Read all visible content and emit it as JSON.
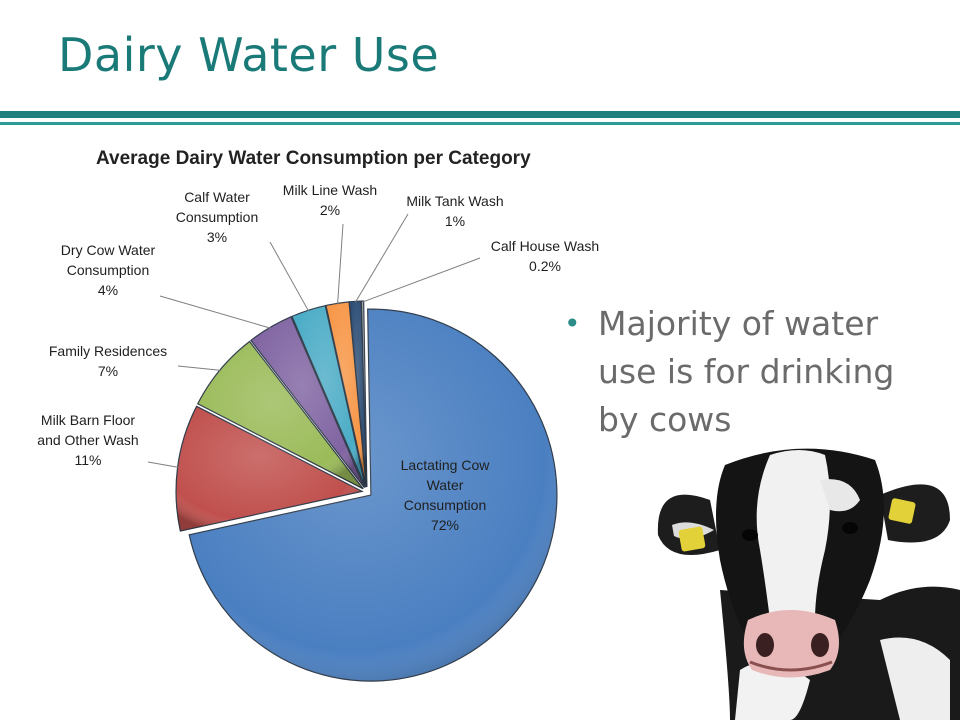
{
  "slide": {
    "title": "Dairy Water Use",
    "bullets": [
      "Majority of water use is for drinking by cows"
    ]
  },
  "chart_data": {
    "type": "pie",
    "title": "Average Dairy Water Consumption per Category",
    "slices": [
      {
        "label": "Lactating Cow Water Consumption",
        "display": "72%",
        "value": 72,
        "color": "#4a7fc1"
      },
      {
        "label": "Milk Barn Floor and Other Wash",
        "display": "11%",
        "value": 11,
        "color": "#c0504d"
      },
      {
        "label": "Family Residences",
        "display": "7%",
        "value": 7,
        "color": "#9bbb59"
      },
      {
        "label": "Dry Cow Water Consumption",
        "display": "4%",
        "value": 4,
        "color": "#8064a2"
      },
      {
        "label": "Calf Water Consumption",
        "display": "3%",
        "value": 3,
        "color": "#4bacc6"
      },
      {
        "label": "Milk Line Wash",
        "display": "2%",
        "value": 2,
        "color": "#f79646"
      },
      {
        "label": "Milk Tank Wash",
        "display": "1%",
        "value": 1,
        "color": "#2c4d75"
      },
      {
        "label": "Calf House Wash",
        "display": "0.2%",
        "value": 0.2,
        "color": "#a5a5a5"
      }
    ],
    "label_lines": [
      [
        "Lactating Cow",
        "Water",
        "Consumption",
        "72%"
      ],
      [
        "Milk Barn Floor",
        "and Other Wash",
        "11%"
      ],
      [
        "Family Residences",
        "7%"
      ],
      [
        "Dry Cow Water",
        "Consumption",
        "4%"
      ],
      [
        "Calf Water",
        "Consumption",
        "3%"
      ],
      [
        "Milk Line Wash",
        "2%"
      ],
      [
        "Milk Tank Wash",
        "1%"
      ],
      [
        "Calf House Wash",
        "0.2%"
      ]
    ]
  }
}
